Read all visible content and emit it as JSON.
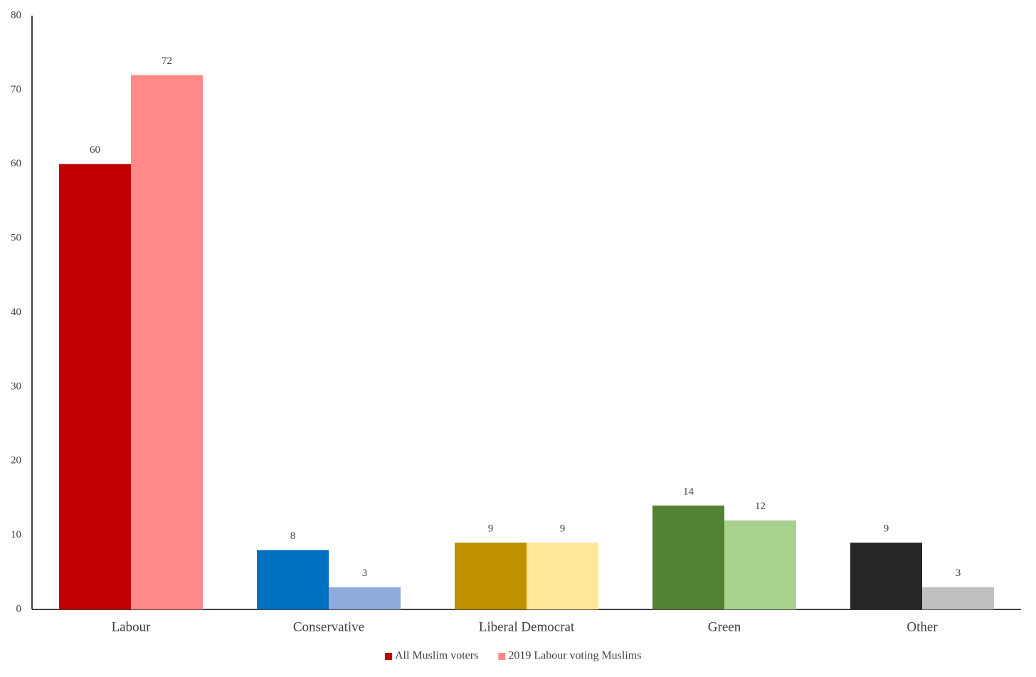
{
  "chart_data": {
    "type": "bar",
    "categories": [
      "Labour",
      "Conservative",
      "Liberal Democrat",
      "Green",
      "Other"
    ],
    "series": [
      {
        "name": "All Muslim voters",
        "color": "#c00000",
        "colors": [
          "#c00000",
          "#0070c0",
          "#bf9000",
          "#548235",
          "#262626"
        ],
        "values": [
          60,
          8,
          9,
          14,
          9
        ]
      },
      {
        "name": "2019 Labour voting Muslims",
        "color": "#ff8989",
        "colors": [
          "#ff8989",
          "#8faadc",
          "#ffe699",
          "#a9d18e",
          "#bfbfbf"
        ],
        "values": [
          72,
          3,
          9,
          12,
          3
        ]
      }
    ],
    "ylim": [
      0,
      80
    ],
    "yticks": [
      0,
      10,
      20,
      30,
      40,
      50,
      60,
      70,
      80
    ],
    "grid": false,
    "legend": "bottom"
  }
}
